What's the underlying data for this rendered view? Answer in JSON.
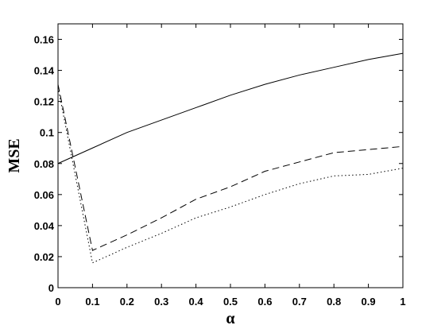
{
  "chart_data": {
    "type": "line",
    "title": "",
    "xlabel": "α",
    "ylabel": "MSE",
    "xlim": [
      0,
      1
    ],
    "ylim": [
      0,
      0.17
    ],
    "xticks": [
      0,
      0.1,
      0.2,
      0.3,
      0.4,
      0.5,
      0.6,
      0.7,
      0.8,
      0.9,
      1
    ],
    "xtick_labels": [
      "0",
      "0.1",
      "0.2",
      "0.3",
      "0.4",
      "0.5",
      "0.6",
      "0.7",
      "0.8",
      "0.9",
      "1"
    ],
    "yticks": [
      0,
      0.02,
      0.04,
      0.06,
      0.08,
      0.1,
      0.12,
      0.14,
      0.16
    ],
    "ytick_labels": [
      "0",
      "0.02",
      "0.04",
      "0.06",
      "0.08",
      "0.1",
      "0.12",
      "0.14",
      "0.16"
    ],
    "grid": false,
    "x": [
      0,
      0.1,
      0.2,
      0.3,
      0.4,
      0.5,
      0.6,
      0.7,
      0.8,
      0.9,
      1
    ],
    "series": [
      {
        "style": "solid",
        "color": "#000000",
        "values": [
          0.08,
          0.09,
          0.1,
          0.108,
          0.116,
          0.124,
          0.131,
          0.137,
          0.142,
          0.147,
          0.151
        ]
      },
      {
        "style": "dashed",
        "color": "#000000",
        "values": [
          0.131,
          0.024,
          0.034,
          0.045,
          0.057,
          0.065,
          0.075,
          0.081,
          0.087,
          0.089,
          0.091
        ]
      },
      {
        "style": "dotted",
        "color": "#000000",
        "values": [
          0.129,
          0.016,
          0.026,
          0.035,
          0.045,
          0.052,
          0.06,
          0.067,
          0.072,
          0.073,
          0.077
        ]
      }
    ]
  }
}
